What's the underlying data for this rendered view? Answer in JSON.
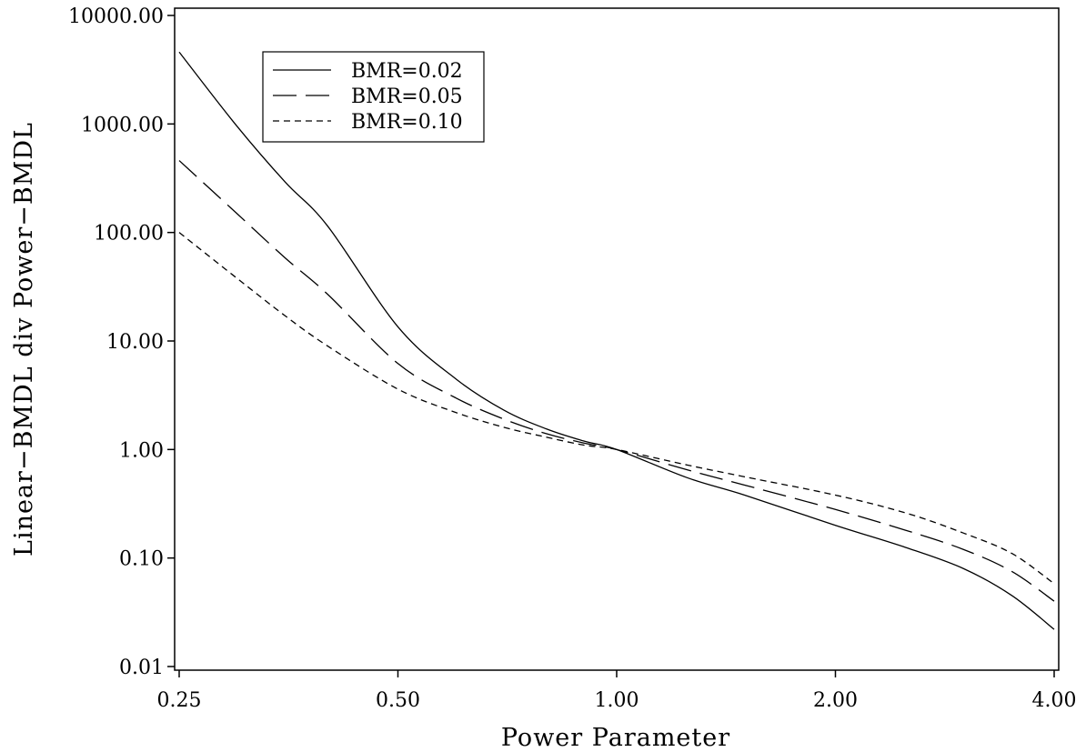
{
  "chart_data": {
    "type": "line",
    "title": "",
    "xlabel": "Power Parameter",
    "ylabel": "Linear−BMDL div Power−BMDL",
    "x_scale": "log",
    "y_scale": "log",
    "xlim": [
      0.25,
      4.0
    ],
    "ylim": [
      0.01,
      10000
    ],
    "x_ticks": [
      {
        "value": 0.25,
        "label": "0.25"
      },
      {
        "value": 0.5,
        "label": "0.50"
      },
      {
        "value": 1.0,
        "label": "1.00"
      },
      {
        "value": 2.0,
        "label": "2.00"
      },
      {
        "value": 4.0,
        "label": "4.00"
      }
    ],
    "y_ticks": [
      {
        "value": 0.01,
        "label": "0.01"
      },
      {
        "value": 0.1,
        "label": "0.10"
      },
      {
        "value": 1,
        "label": "1.00"
      },
      {
        "value": 10,
        "label": "10.00"
      },
      {
        "value": 100,
        "label": "100.00"
      },
      {
        "value": 1000,
        "label": "1000.00"
      },
      {
        "value": 10000,
        "label": "10000.00"
      }
    ],
    "grid": false,
    "legend_position": "top-left",
    "x": [
      0.25,
      0.3,
      0.35,
      0.4,
      0.5,
      0.6,
      0.7,
      0.8,
      0.9,
      1.0,
      1.25,
      1.5,
      2.0,
      2.5,
      3.0,
      3.5,
      4.0
    ],
    "series": [
      {
        "name": "BMR=0.02",
        "dash": "solid",
        "values": [
          4600,
          960,
          290,
          115,
          13.5,
          4.5,
          2.3,
          1.55,
          1.2,
          1.0,
          0.55,
          0.38,
          0.2,
          0.125,
          0.08,
          0.045,
          0.022
        ]
      },
      {
        "name": "BMR=0.05",
        "dash": "long-dash",
        "values": [
          460,
          150,
          58,
          27,
          6.2,
          3.0,
          1.9,
          1.4,
          1.15,
          1.0,
          0.65,
          0.47,
          0.28,
          0.18,
          0.12,
          0.075,
          0.04
        ]
      },
      {
        "name": "BMR=0.10",
        "dash": "short-dash",
        "values": [
          100,
          38,
          17,
          9.0,
          3.6,
          2.2,
          1.6,
          1.3,
          1.1,
          1.0,
          0.72,
          0.56,
          0.38,
          0.26,
          0.17,
          0.11,
          0.058
        ]
      }
    ]
  }
}
